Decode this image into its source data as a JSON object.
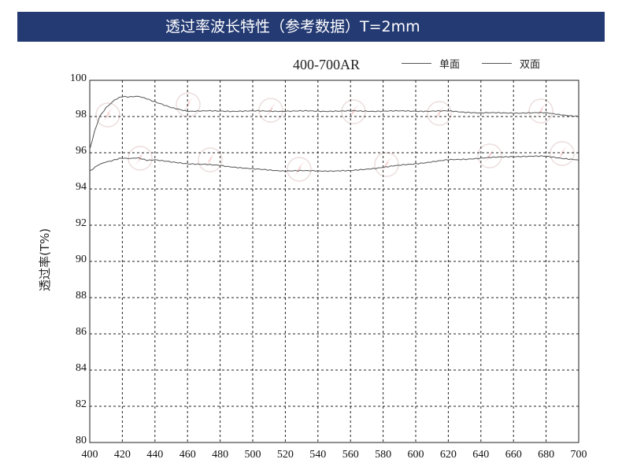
{
  "header": {
    "title": "透过率波长特性（参考数据）T=2mm",
    "background": "#243a73"
  },
  "chart_data": {
    "type": "line",
    "title": "400-700AR",
    "ylabel": "透过率(T%)",
    "xlabel": "",
    "xlim": [
      400,
      700
    ],
    "ylim": [
      80,
      100
    ],
    "x_ticks": [
      400,
      420,
      440,
      460,
      480,
      500,
      520,
      540,
      560,
      580,
      600,
      620,
      640,
      660,
      680,
      700
    ],
    "y_ticks": [
      80,
      82,
      84,
      86,
      88,
      90,
      92,
      94,
      96,
      98,
      100
    ],
    "grid": "dashed",
    "legend_position": "top",
    "series": [
      {
        "name": "单面",
        "x": [
          400,
          405,
          410,
          415,
          420,
          425,
          430,
          435,
          440,
          450,
          460,
          480,
          500,
          520,
          540,
          560,
          580,
          600,
          620,
          640,
          660,
          680,
          700
        ],
        "y": [
          95.0,
          95.3,
          95.5,
          95.6,
          95.7,
          95.7,
          95.7,
          95.6,
          95.6,
          95.5,
          95.4,
          95.3,
          95.1,
          95.0,
          95.0,
          95.0,
          95.2,
          95.4,
          95.6,
          95.7,
          95.8,
          95.8,
          95.6
        ]
      },
      {
        "name": "双面",
        "x": [
          400,
          403,
          406,
          410,
          415,
          420,
          425,
          430,
          435,
          440,
          450,
          460,
          480,
          500,
          520,
          540,
          560,
          580,
          600,
          620,
          640,
          660,
          680,
          700
        ],
        "y": [
          96.2,
          97.2,
          98.0,
          98.5,
          98.9,
          99.1,
          99.1,
          99.1,
          99.0,
          98.8,
          98.5,
          98.3,
          98.3,
          98.3,
          98.3,
          98.3,
          98.3,
          98.3,
          98.3,
          98.3,
          98.2,
          98.2,
          98.2,
          98.0
        ]
      }
    ]
  }
}
